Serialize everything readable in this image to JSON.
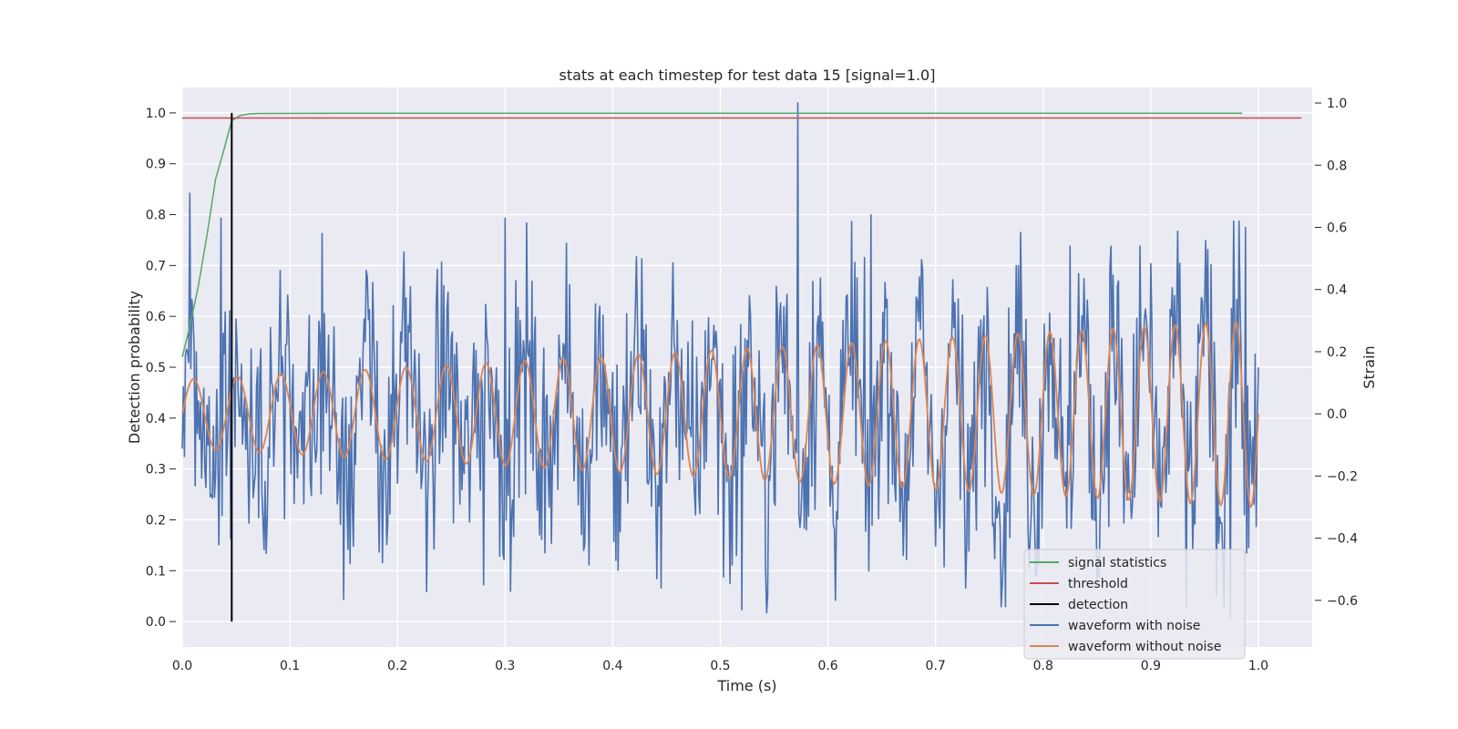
{
  "chart_data": {
    "type": "line",
    "title": "stats at each timestep for test data 15 [signal=1.0]",
    "xlabel": "Time (s)",
    "ylabel_left": "Detection probability",
    "ylabel_right": "Strain",
    "xlim": [
      0.0,
      1.05
    ],
    "ylim_left": [
      -0.05,
      1.05
    ],
    "ylim_right": [
      -0.75,
      1.05
    ],
    "xticks": [
      "0.0",
      "0.1",
      "0.2",
      "0.3",
      "0.4",
      "0.5",
      "0.6",
      "0.7",
      "0.8",
      "0.9",
      "1.0"
    ],
    "yticks_left": [
      "0.0",
      "0.1",
      "0.2",
      "0.3",
      "0.4",
      "0.5",
      "0.6",
      "0.7",
      "0.8",
      "0.9",
      "1.0"
    ],
    "yticks_right": [
      "−0.6",
      "−0.4",
      "−0.2",
      "0.0",
      "0.2",
      "0.4",
      "0.6",
      "0.8",
      "1.0"
    ],
    "grid": true,
    "legend_position": "lower-right",
    "colors": {
      "background": "#eaeaf2",
      "grid": "#ffffff",
      "signal_statistics": "#55a868",
      "threshold": "#c44e52",
      "detection": "#000000",
      "waveform_with_noise": "#4c72b0",
      "waveform_without_noise": "#dd8452"
    },
    "series": [
      {
        "name": "signal statistics",
        "axis": "left",
        "x": [
          0.0,
          0.007,
          0.015,
          0.023,
          0.031,
          0.039,
          0.046,
          0.054,
          0.062,
          0.07,
          0.2,
          0.5,
          0.8,
          0.985
        ],
        "y": [
          0.52,
          0.58,
          0.66,
          0.76,
          0.87,
          0.93,
          0.985,
          0.995,
          0.998,
          0.999,
          0.9995,
          0.9995,
          0.9995,
          0.9995
        ]
      },
      {
        "name": "threshold",
        "axis": "left",
        "x": [
          0.0,
          1.04
        ],
        "y": [
          0.99,
          0.99
        ]
      },
      {
        "name": "detection",
        "axis": "left",
        "x": [
          0.046,
          0.046
        ],
        "y": [
          0.0,
          1.0
        ]
      },
      {
        "name": "waveform with noise",
        "axis": "right",
        "x_range": [
          0.0,
          1.0
        ],
        "n_points": 1000,
        "std": 0.19,
        "spikes": [
          {
            "x": 0.007,
            "y": 0.71
          },
          {
            "x": 0.036,
            "y": 0.63
          },
          {
            "x": 0.045,
            "y": -0.4
          },
          {
            "x": 0.13,
            "y": 0.58
          },
          {
            "x": 0.3,
            "y": 0.63
          },
          {
            "x": 0.28,
            "y": -0.55
          },
          {
            "x": 0.445,
            "y": -0.56
          },
          {
            "x": 0.52,
            "y": -0.63
          },
          {
            "x": 0.543,
            "y": -0.64
          },
          {
            "x": 0.572,
            "y": 1.0
          },
          {
            "x": 0.607,
            "y": -0.6
          },
          {
            "x": 0.64,
            "y": 0.64
          },
          {
            "x": 0.728,
            "y": -0.56
          },
          {
            "x": 0.762,
            "y": -0.55
          },
          {
            "x": 0.825,
            "y": 0.54
          },
          {
            "x": 0.89,
            "y": 0.54
          },
          {
            "x": 0.956,
            "y": 0.48
          },
          {
            "x": 0.988,
            "y": 0.6
          },
          {
            "x": 0.974,
            "y": -0.66
          }
        ]
      },
      {
        "name": "waveform without noise",
        "axis": "right",
        "x_range": [
          0.0,
          1.0
        ],
        "amplitude_start": 0.11,
        "amplitude_end": 0.3,
        "frequency_start": 24,
        "frequency_end": 36
      }
    ]
  }
}
